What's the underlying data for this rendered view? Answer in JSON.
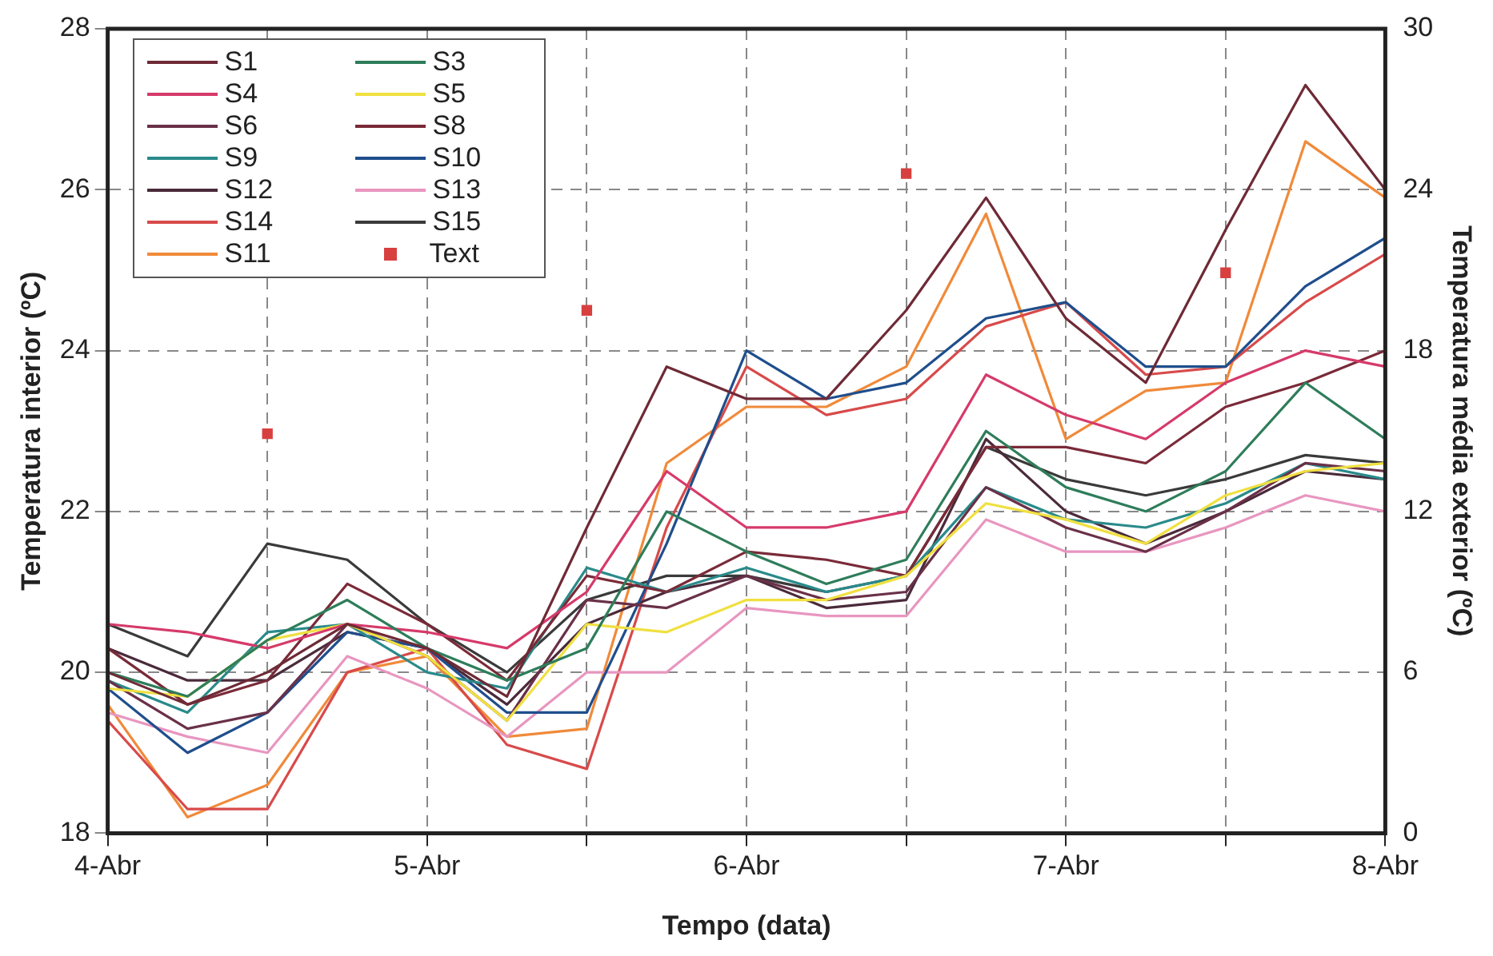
{
  "chart_data": {
    "type": "line",
    "xlabel": "Tempo (data)",
    "ylabel": "Temperatura interior (ºC)",
    "y2label": "Temperatura média exterior (ºC)",
    "x": [
      4,
      4.25,
      4.5,
      4.75,
      5,
      5.25,
      5.5,
      5.75,
      6,
      6.25,
      6.5,
      6.75,
      7,
      7.25,
      7.5,
      7.75,
      8
    ],
    "xlim": [
      4,
      8
    ],
    "xticks": [
      {
        "value": 4,
        "label": "4-Abr"
      },
      {
        "value": 4.5,
        "label": null
      },
      {
        "value": 5,
        "label": "5-Abr"
      },
      {
        "value": 5.5,
        "label": null
      },
      {
        "value": 6,
        "label": "6-Abr"
      },
      {
        "value": 6.5,
        "label": null
      },
      {
        "value": 7,
        "label": "7-Abr"
      },
      {
        "value": 7.5,
        "label": null
      },
      {
        "value": 8,
        "label": "8-Abr"
      }
    ],
    "ylim": [
      18,
      28
    ],
    "yticks": [
      18,
      20,
      22,
      24,
      26,
      28
    ],
    "y2lim": [
      0,
      30
    ],
    "y2ticks": [
      0,
      6,
      12,
      18,
      24,
      30
    ],
    "grid": true,
    "legend": "top left",
    "line_style": "solid",
    "series": [
      {
        "name": "S1",
        "color": "#6e2a36",
        "values": [
          20.0,
          19.6,
          20.0,
          20.6,
          20.3,
          19.7,
          21.8,
          23.8,
          23.4,
          23.4,
          24.5,
          25.9,
          24.4,
          23.6,
          25.5,
          27.3,
          26.0
        ]
      },
      {
        "name": "S3",
        "color": "#2e7d5a",
        "values": [
          20.0,
          19.7,
          20.4,
          20.9,
          20.3,
          19.9,
          20.3,
          22.0,
          21.5,
          21.1,
          21.4,
          23.0,
          22.3,
          22.0,
          22.5,
          23.6,
          22.9
        ]
      },
      {
        "name": "S4",
        "color": "#d63a6a",
        "values": [
          20.6,
          20.5,
          20.3,
          20.6,
          20.5,
          20.3,
          21.0,
          22.5,
          21.8,
          21.8,
          22.0,
          23.7,
          23.2,
          22.9,
          23.6,
          24.0,
          23.8
        ]
      },
      {
        "name": "S5",
        "color": "#f0e040",
        "values": [
          19.8,
          19.7,
          20.4,
          20.6,
          20.2,
          19.4,
          20.6,
          20.5,
          20.9,
          20.9,
          21.2,
          22.1,
          21.9,
          21.6,
          22.2,
          22.5,
          22.6
        ]
      },
      {
        "name": "S6",
        "color": "#6a3048",
        "values": [
          19.9,
          19.3,
          19.5,
          20.6,
          20.2,
          19.4,
          20.9,
          20.8,
          21.2,
          20.9,
          21.0,
          22.3,
          21.8,
          21.5,
          22.0,
          22.6,
          22.5
        ]
      },
      {
        "name": "S8",
        "color": "#7a2a38",
        "values": [
          20.3,
          19.6,
          19.9,
          21.1,
          20.6,
          19.9,
          21.2,
          21.0,
          21.5,
          21.4,
          21.2,
          22.8,
          22.8,
          22.6,
          23.3,
          23.6,
          24.0
        ]
      },
      {
        "name": "S9",
        "color": "#2a8a8a",
        "values": [
          19.9,
          19.5,
          20.5,
          20.6,
          20.0,
          19.8,
          21.3,
          21.0,
          21.3,
          21.0,
          21.2,
          22.3,
          21.9,
          21.8,
          22.1,
          22.6,
          22.4
        ]
      },
      {
        "name": "S10",
        "color": "#1f4e8c",
        "values": [
          19.8,
          19.0,
          19.5,
          20.5,
          20.3,
          19.5,
          19.5,
          21.6,
          24.0,
          23.4,
          23.6,
          24.4,
          24.6,
          23.8,
          23.8,
          24.8,
          25.4
        ]
      },
      {
        "name": "S12",
        "color": "#4a2a3a",
        "values": [
          20.3,
          19.9,
          19.9,
          20.5,
          20.3,
          19.6,
          20.6,
          21.0,
          21.2,
          20.8,
          20.9,
          22.9,
          22.0,
          21.6,
          22.0,
          22.5,
          22.4
        ]
      },
      {
        "name": "S13",
        "color": "#e896c0",
        "values": [
          19.5,
          19.2,
          19.0,
          20.2,
          19.8,
          19.2,
          20.0,
          20.0,
          20.8,
          20.7,
          20.7,
          21.9,
          21.5,
          21.5,
          21.8,
          22.2,
          22.0
        ]
      },
      {
        "name": "S14",
        "color": "#d84a4a",
        "values": [
          19.4,
          18.3,
          18.3,
          20.0,
          20.3,
          19.1,
          18.8,
          21.8,
          23.8,
          23.2,
          23.4,
          24.3,
          24.6,
          23.7,
          23.8,
          24.6,
          25.2
        ]
      },
      {
        "name": "S15",
        "color": "#3a3a3a",
        "values": [
          20.6,
          20.2,
          21.6,
          21.4,
          20.6,
          20.0,
          20.9,
          21.2,
          21.2,
          21.0,
          21.2,
          22.8,
          22.4,
          22.2,
          22.4,
          22.7,
          22.6
        ]
      },
      {
        "name": "S11",
        "color": "#f08a3a",
        "values": [
          19.6,
          18.2,
          18.6,
          20.0,
          20.2,
          19.2,
          19.3,
          22.6,
          23.3,
          23.3,
          23.8,
          25.7,
          22.9,
          23.5,
          23.6,
          26.6,
          25.9
        ]
      },
      {
        "name": "Text",
        "type": "scatter",
        "axis": "y2",
        "marker": "square",
        "color": "#d84040",
        "x": [
          4.5,
          5.5,
          6.5,
          7.5
        ],
        "values": [
          14.9,
          19.5,
          24.6,
          20.9
        ]
      }
    ]
  }
}
